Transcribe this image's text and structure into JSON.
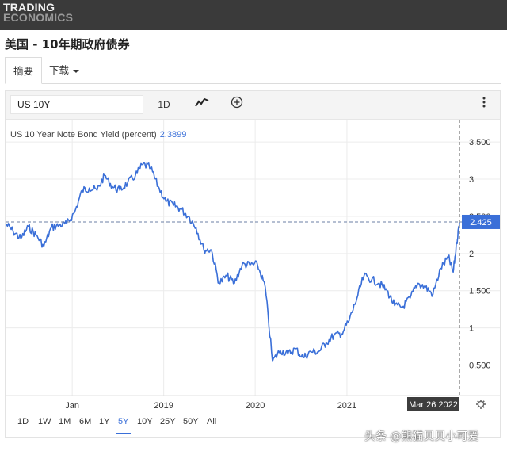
{
  "header": {
    "logo_line1": "TRADING",
    "logo_line2": "ECONOMICS"
  },
  "page": {
    "title": "美国 - 10年期政府债券"
  },
  "tabs": [
    {
      "label": "摘要",
      "active": true
    },
    {
      "label": "下载",
      "active": false
    }
  ],
  "toolbar": {
    "symbol_value": "US 10Y",
    "interval_label": "1D",
    "chart_type_icon": "line-chart-icon",
    "add_icon": "plus-circle-icon",
    "more_icon": "more-vertical-icon"
  },
  "legend": {
    "series_name": "US 10 Year Note Bond Yield (percent)",
    "value": "2.3899"
  },
  "range_buttons": [
    "1D",
    "1W",
    "1M",
    "6M",
    "1Y",
    "5Y",
    "10Y",
    "25Y",
    "50Y",
    "All"
  ],
  "active_range": "5Y",
  "settings_icon": "gear-icon",
  "watermark": "头条 @熊猫贝贝小可爱",
  "colors": {
    "line": "#3a6fd8",
    "crosshair_label_bg": "#3a6fd8",
    "date_label_bg": "#3d3d3d"
  },
  "chart_data": {
    "type": "line",
    "title": "",
    "xlabel": "",
    "ylabel": "",
    "ylim": [
      0.09,
      3.8
    ],
    "y_ticks": [
      "3.500",
      "3",
      "2.500",
      "2",
      "1.500",
      "1",
      "0.500"
    ],
    "y_tick_values": [
      3.5,
      3.0,
      2.5,
      2.0,
      1.5,
      1.0,
      0.5
    ],
    "x_ticks": [
      "Jan",
      "2019",
      "2020",
      "2021"
    ],
    "x_tick_dates": [
      "2018-01-01",
      "2019-01-01",
      "2020-01-01",
      "2021-01-01"
    ],
    "xlim": [
      "2017-04-10",
      "2022-03-26"
    ],
    "crosshair_price_label": "2.425",
    "crosshair_date_label": "Mar 26 2022",
    "grid": true,
    "series": [
      {
        "values": [
          [
            "2017-04-10",
            2.4
          ],
          [
            "2017-05-10",
            2.3
          ],
          [
            "2017-06-10",
            2.2
          ],
          [
            "2017-07-10",
            2.36
          ],
          [
            "2017-08-10",
            2.25
          ],
          [
            "2017-09-10",
            2.1
          ],
          [
            "2017-10-10",
            2.35
          ],
          [
            "2017-11-10",
            2.38
          ],
          [
            "2017-12-10",
            2.4
          ],
          [
            "2018-01-10",
            2.55
          ],
          [
            "2018-02-10",
            2.85
          ],
          [
            "2018-03-10",
            2.88
          ],
          [
            "2018-04-10",
            2.85
          ],
          [
            "2018-05-10",
            3.05
          ],
          [
            "2018-06-10",
            2.9
          ],
          [
            "2018-07-10",
            2.85
          ],
          [
            "2018-08-10",
            2.95
          ],
          [
            "2018-09-10",
            3.05
          ],
          [
            "2018-10-10",
            3.2
          ],
          [
            "2018-11-10",
            3.15
          ],
          [
            "2018-12-10",
            2.9
          ],
          [
            "2019-01-10",
            2.7
          ],
          [
            "2019-02-10",
            2.65
          ],
          [
            "2019-03-10",
            2.6
          ],
          [
            "2019-04-10",
            2.5
          ],
          [
            "2019-05-10",
            2.35
          ],
          [
            "2019-06-10",
            2.05
          ],
          [
            "2019-07-10",
            2.05
          ],
          [
            "2019-08-10",
            1.6
          ],
          [
            "2019-09-10",
            1.7
          ],
          [
            "2019-10-10",
            1.6
          ],
          [
            "2019-11-10",
            1.85
          ],
          [
            "2019-12-10",
            1.85
          ],
          [
            "2020-01-10",
            1.85
          ],
          [
            "2020-02-10",
            1.55
          ],
          [
            "2020-03-10",
            0.55
          ],
          [
            "2020-04-10",
            0.7
          ],
          [
            "2020-05-10",
            0.65
          ],
          [
            "2020-06-10",
            0.72
          ],
          [
            "2020-07-10",
            0.6
          ],
          [
            "2020-08-10",
            0.68
          ],
          [
            "2020-09-10",
            0.68
          ],
          [
            "2020-10-10",
            0.8
          ],
          [
            "2020-11-10",
            0.9
          ],
          [
            "2020-12-10",
            0.92
          ],
          [
            "2021-01-10",
            1.1
          ],
          [
            "2021-02-10",
            1.4
          ],
          [
            "2021-03-10",
            1.7
          ],
          [
            "2021-04-10",
            1.65
          ],
          [
            "2021-05-10",
            1.6
          ],
          [
            "2021-06-10",
            1.5
          ],
          [
            "2021-07-10",
            1.3
          ],
          [
            "2021-08-10",
            1.28
          ],
          [
            "2021-09-10",
            1.4
          ],
          [
            "2021-10-10",
            1.6
          ],
          [
            "2021-11-10",
            1.55
          ],
          [
            "2021-12-10",
            1.45
          ],
          [
            "2022-01-10",
            1.8
          ],
          [
            "2022-02-10",
            1.95
          ],
          [
            "2022-03-01",
            1.75
          ],
          [
            "2022-03-15",
            2.15
          ],
          [
            "2022-03-26",
            2.42
          ]
        ]
      }
    ]
  }
}
